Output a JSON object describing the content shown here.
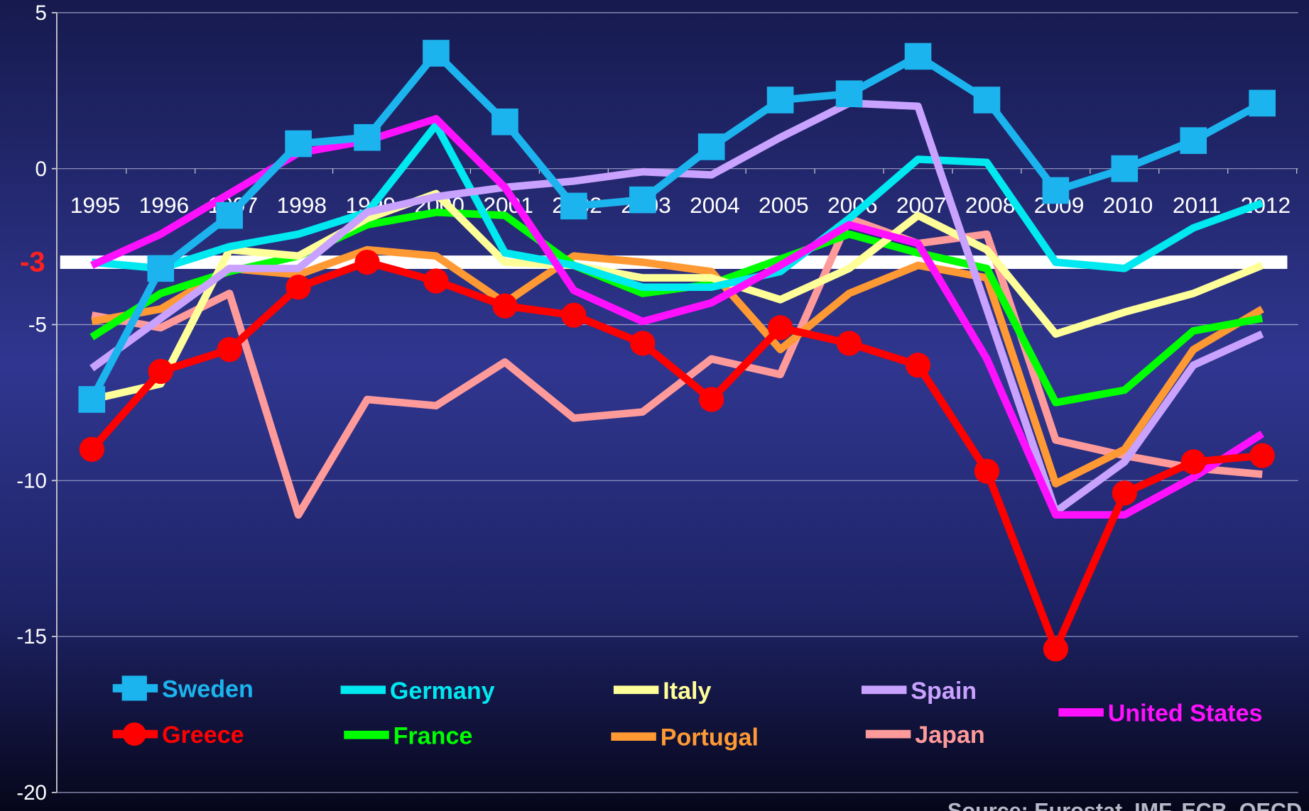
{
  "chart_data": {
    "type": "line",
    "categories": [
      "1995",
      "1996",
      "1997",
      "1998",
      "1999",
      "2000",
      "2001",
      "2002",
      "2003",
      "2004",
      "2005",
      "2006",
      "2007",
      "2008",
      "2009",
      "2010",
      "2011",
      "2012"
    ],
    "ylim": [
      -20,
      5
    ],
    "yticks": [
      5,
      0,
      -5,
      -10,
      -15,
      -20
    ],
    "grid": true,
    "reference_line": {
      "value": -3,
      "color": "#ffffff",
      "label_color": "#ff2020"
    },
    "source": "Source: Eurostat, IMF, ECB, OECD",
    "series": [
      {
        "name": "Sweden",
        "color": "#1cb4ee",
        "marker": "square",
        "values": [
          -7.4,
          -3.2,
          -1.5,
          0.8,
          1.0,
          3.7,
          1.5,
          -1.2,
          -1.0,
          0.7,
          2.2,
          2.4,
          3.6,
          2.2,
          -0.7,
          0,
          0.9,
          2.1
        ]
      },
      {
        "name": "Germany",
        "color": "#00e8f0",
        "values": [
          -3.0,
          -3.2,
          -2.5,
          -2.1,
          -1.4,
          1.4,
          -2.7,
          -3.1,
          -3.8,
          -3.8,
          -3.3,
          -1.6,
          0.3,
          0.2,
          -3.0,
          -3.2,
          -1.9,
          -1.1
        ]
      },
      {
        "name": "Italy",
        "color": "#ffff99",
        "values": [
          -7.4,
          -6.9,
          -2.6,
          -2.8,
          -1.6,
          -0.8,
          -3.0,
          -3.1,
          -3.5,
          -3.5,
          -4.2,
          -3.2,
          -1.5,
          -2.6,
          -5.3,
          -4.6,
          -4.0,
          -3.1
        ]
      },
      {
        "name": "Spain",
        "color": "#c9a2ff",
        "values": [
          -6.4,
          -4.8,
          -3.2,
          -3.2,
          -1.4,
          -0.9,
          -0.6,
          -0.4,
          -0.1,
          -0.2,
          1.0,
          2.1,
          2.0,
          -4.5,
          -11.0,
          -9.4,
          -6.3,
          -5.3
        ]
      },
      {
        "name": "United States",
        "color": "#ff10ff",
        "values": [
          -3.1,
          -2.1,
          -0.8,
          0.5,
          0.9,
          1.6,
          -0.6,
          -3.9,
          -4.9,
          -4.3,
          -3.1,
          -1.8,
          -2.4,
          -6.1,
          -11.1,
          -11.1,
          -9.9,
          -8.5
        ]
      },
      {
        "name": "Greece",
        "color": "#ff0000",
        "marker": "circle",
        "values": [
          -9.0,
          -6.5,
          -5.8,
          -3.8,
          -3.0,
          -3.6,
          -4.4,
          -4.7,
          -5.6,
          -7.4,
          -5.1,
          -5.6,
          -6.3,
          -9.7,
          -15.4,
          -10.4,
          -9.4,
          -9.2
        ]
      },
      {
        "name": "France",
        "color": "#00ff00",
        "values": [
          -5.4,
          -4.0,
          -3.3,
          -2.8,
          -1.8,
          -1.4,
          -1.5,
          -3.1,
          -4.0,
          -3.7,
          -2.9,
          -2.1,
          -2.7,
          -3.2,
          -7.5,
          -7.1,
          -5.2,
          -4.8
        ]
      },
      {
        "name": "Portugal",
        "color": "#ff9933",
        "values": [
          -4.9,
          -4.5,
          -3.2,
          -3.4,
          -2.6,
          -2.8,
          -4.3,
          -2.8,
          -3.0,
          -3.3,
          -5.8,
          -4.0,
          -3.1,
          -3.5,
          -10.1,
          -9.0,
          -5.8,
          -4.5
        ]
      },
      {
        "name": "Japan",
        "color": "#ff9a9a",
        "values": [
          -4.7,
          -5.1,
          -4.0,
          -11.1,
          -7.4,
          -7.6,
          -6.2,
          -8.0,
          -7.8,
          -6.1,
          -6.6,
          -1.6,
          -2.4,
          -2.1,
          -8.7,
          -9.2,
          -9.6,
          -9.8
        ]
      }
    ]
  }
}
